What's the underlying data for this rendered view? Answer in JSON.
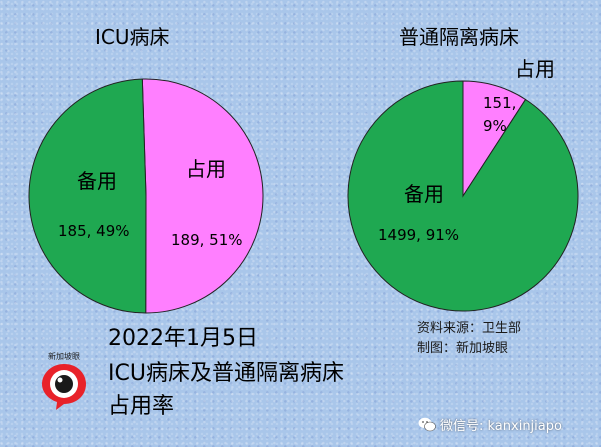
{
  "chart_data": [
    {
      "type": "pie",
      "title": "ICU病床",
      "slices": [
        {
          "label": "占用",
          "value": 189,
          "percent": 51,
          "value_label": "189, 51%",
          "color": "#ff7fff"
        },
        {
          "label": "备用",
          "value": 185,
          "percent": 49,
          "value_label": "185, 49%",
          "color": "#1fa851"
        }
      ]
    },
    {
      "type": "pie",
      "title": "普通隔离病床",
      "slices": [
        {
          "label": "占用",
          "value": 151,
          "percent": 9,
          "value_label": "151,",
          "value_label2": "9%",
          "color": "#ff7fff"
        },
        {
          "label": "备用",
          "value": 1499,
          "percent": 91,
          "value_label": "1499, 91%",
          "color": "#1fa851"
        }
      ]
    }
  ],
  "caption": {
    "line1": "2022年1月5日",
    "line2": "ICU病床及普通隔离病床",
    "line3": "占用率"
  },
  "source": {
    "line1": "资料来源：卫生部",
    "line2": "制图：新加坡眼"
  },
  "logo": {
    "text": "新加坡眼",
    "icon": "eye-logo-icon"
  },
  "watermark": {
    "text": "微信号: kanxinjiapo",
    "icon": "wechat-icon"
  }
}
